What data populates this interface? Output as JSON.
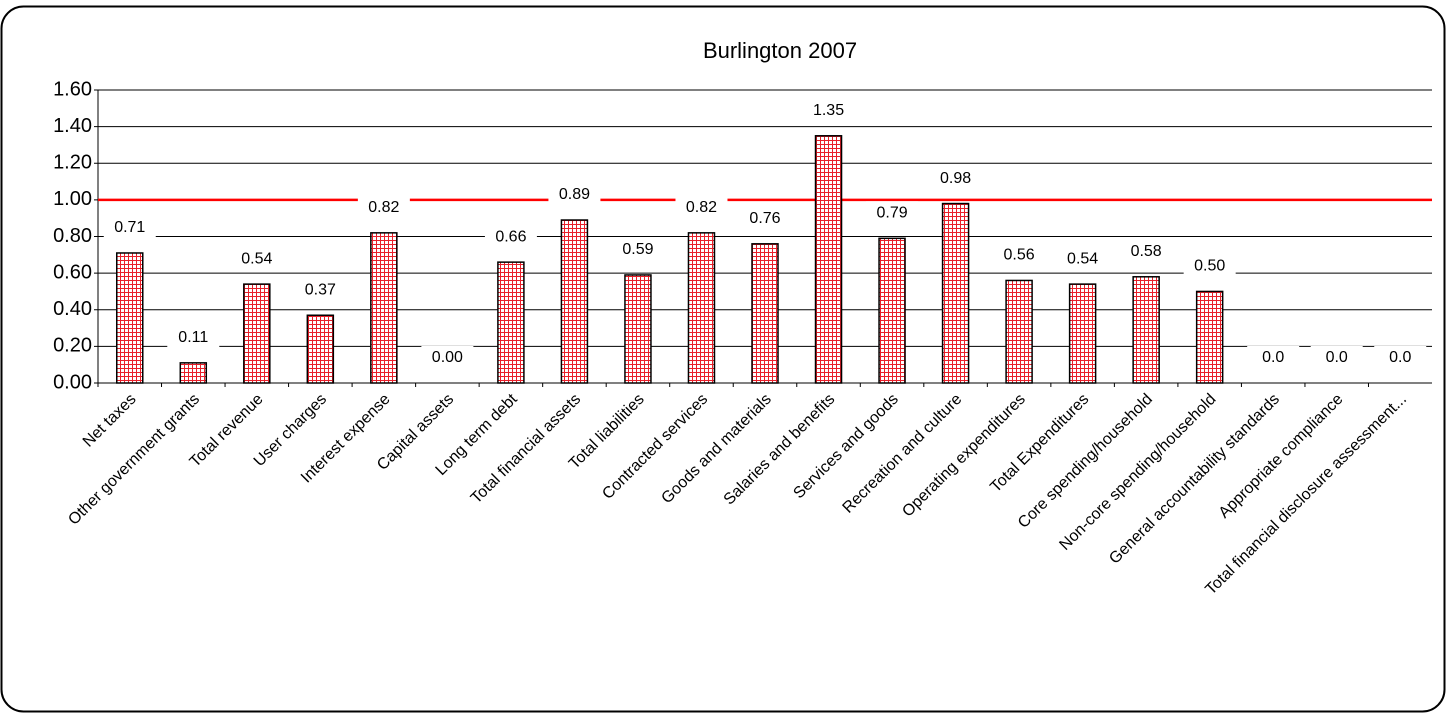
{
  "chart_data": {
    "type": "bar",
    "title": "Burlington 2007",
    "categories": [
      "Net taxes",
      "Other government grants",
      "Total revenue",
      "User charges",
      "Interest expense",
      "Capital assets",
      "Long term debt",
      "Total financial assets",
      "Total liabilities",
      "Contracted services",
      "Goods and materials",
      "Salaries and benefits",
      "Services and goods",
      "Recreation and culture",
      "Operating expenditures",
      "Total Expenditures",
      "Core spending/household",
      "Non-core spending/household",
      "General accountability standards",
      "Appropriate compliance",
      "Total financial disclosure assessment..."
    ],
    "values": [
      0.71,
      0.11,
      0.54,
      0.37,
      0.82,
      0,
      0.66,
      0.89,
      0.59,
      0.82,
      0.76,
      1.35,
      0.79,
      0.98,
      0.56,
      0.54,
      0.58,
      0.5,
      0,
      0,
      0
    ],
    "value_labels": [
      "0.71",
      "0.11",
      "0.54",
      "0.37",
      "0.82",
      "0.00",
      "0.66",
      "0.89",
      "0.59",
      "0.82",
      "0.76",
      "1.35",
      "0.79",
      "0.98",
      "0.56",
      "0.54",
      "0.58",
      "0.50",
      "0.0",
      "0.0",
      "0.0"
    ],
    "color": "#e8202a",
    "ylim": [
      0,
      1.6
    ],
    "yticks": [
      {
        "value": 0,
        "label": "0.00"
      },
      {
        "value": 0.2,
        "label": "0.20"
      },
      {
        "value": 0.4,
        "label": "0.40"
      },
      {
        "value": 0.6,
        "label": "0.60"
      },
      {
        "value": 0.8,
        "label": "0.80"
      },
      {
        "value": 1,
        "label": "1.00"
      },
      {
        "value": 1.2,
        "label": "1.20"
      },
      {
        "value": 1.4,
        "label": "1.40"
      },
      {
        "value": 1.6,
        "label": "1.60"
      }
    ],
    "grid": true,
    "reference_line": {
      "value": 1,
      "color": "#ff0000"
    }
  }
}
